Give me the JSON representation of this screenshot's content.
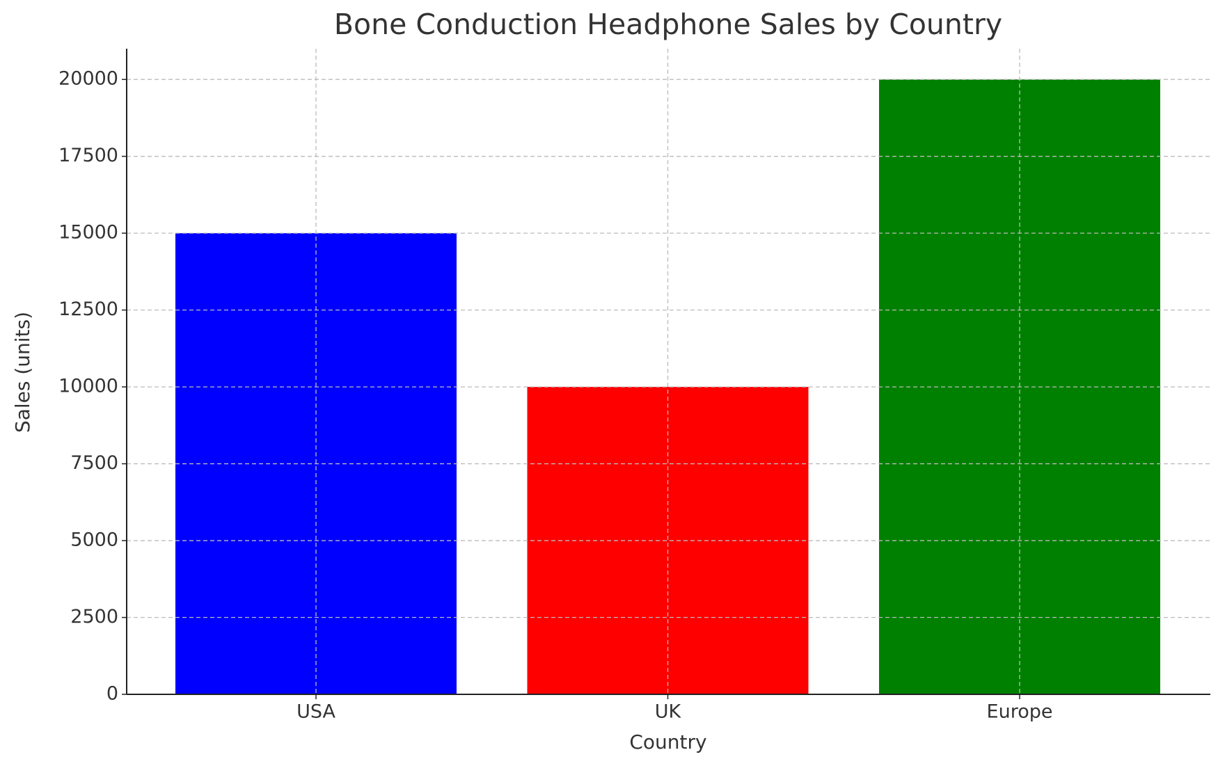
{
  "chart_data": {
    "type": "bar",
    "title": "Bone Conduction Headphone Sales by Country",
    "x_label": "Country",
    "y_label": "Sales (units)",
    "categories": [
      "USA",
      "UK",
      "Europe"
    ],
    "values": [
      15000,
      10000,
      20000
    ],
    "colors": [
      "#0000ff",
      "#ff0000",
      "#008000"
    ],
    "ylim": [
      0,
      21000
    ],
    "yticks": [
      0,
      2500,
      5000,
      7500,
      10000,
      12500,
      15000,
      17500,
      20000
    ],
    "grid": true
  }
}
